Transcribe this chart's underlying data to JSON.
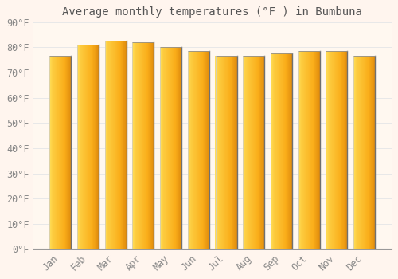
{
  "title": "Average monthly temperatures (°F ) in Bumbuna",
  "months": [
    "Jan",
    "Feb",
    "Mar",
    "Apr",
    "May",
    "Jun",
    "Jul",
    "Aug",
    "Sep",
    "Oct",
    "Nov",
    "Dec"
  ],
  "values": [
    76.5,
    81.0,
    82.5,
    82.0,
    80.0,
    78.5,
    76.5,
    76.5,
    77.5,
    78.5,
    78.5,
    76.5
  ],
  "bar_color_left": "#FFD060",
  "bar_color_right": "#F5A000",
  "bar_color_center": "#FFCC40",
  "bar_edge_color": "#888888",
  "background_color": "#FFF5EE",
  "plot_bg_gradient_top": "#FFF0F0",
  "plot_bg_gradient_bottom": "#FFE8D0",
  "grid_color": "#E8E8E8",
  "text_color": "#888888",
  "ylim": [
    0,
    90
  ],
  "yticks": [
    0,
    10,
    20,
    30,
    40,
    50,
    60,
    70,
    80,
    90
  ],
  "title_fontsize": 10,
  "tick_fontsize": 8.5,
  "bar_width": 0.78
}
